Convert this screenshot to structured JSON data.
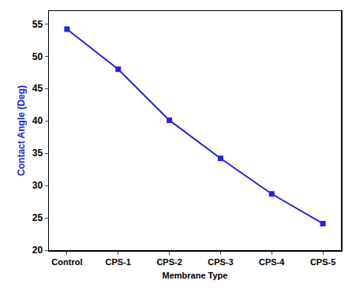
{
  "chart_data": {
    "type": "line",
    "x_label": "Membrane Type",
    "y_label": "Contact Angle (Deg)",
    "categories": [
      "Control",
      "CPS-1",
      "CPS-2",
      "CPS-3",
      "CPS-4",
      "CPS-5"
    ],
    "values": [
      54.2,
      48.0,
      40.1,
      34.2,
      28.7,
      24.1
    ],
    "color": "#2323e0",
    "marker": "square",
    "line_style": "solid",
    "ylim": [
      20,
      57
    ],
    "yticks": [
      20,
      25,
      30,
      35,
      40,
      45,
      50,
      55
    ],
    "grid": false
  }
}
